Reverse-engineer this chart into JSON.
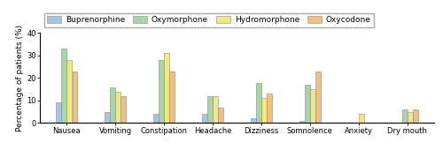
{
  "categories": [
    "Nausea",
    "Vomiting",
    "Constipation",
    "Headache",
    "Dizziness",
    "Somnolence",
    "Anxiety",
    "Dry mouth"
  ],
  "series": {
    "Buprenorphine": [
      9,
      5,
      4,
      4,
      2,
      1,
      0,
      0
    ],
    "Oxymorphone": [
      33,
      16,
      28,
      12,
      18,
      17,
      0,
      6
    ],
    "Hydromorphone": [
      28,
      14,
      31,
      12,
      11,
      15,
      4,
      5
    ],
    "Oxycodone": [
      23,
      12,
      23,
      7,
      13,
      23,
      0,
      6
    ]
  },
  "colors": {
    "Buprenorphine": "#a8c4e0",
    "Oxymorphone": "#a8d4a8",
    "Hydromorphone": "#f0e880",
    "Oxycodone": "#f0c080"
  },
  "ylabel": "Percentage of patients (%)",
  "ylim": [
    0,
    40
  ],
  "yticks": [
    0,
    10,
    20,
    30,
    40
  ],
  "bar_width": 0.1,
  "legend_fontsize": 6.5,
  "tick_fontsize": 6.0,
  "ylabel_fontsize": 6.5,
  "background_color": "#ffffff"
}
